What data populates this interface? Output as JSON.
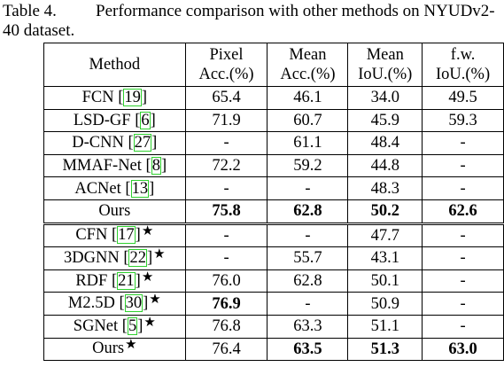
{
  "caption": {
    "label": "Table 4.",
    "text": "Performance comparison with other methods on NYUDv2-40 dataset."
  },
  "headers": [
    {
      "l1": "Method",
      "l2": ""
    },
    {
      "l1": "Pixel",
      "l2": "Acc.(%)"
    },
    {
      "l1": "Mean",
      "l2": "Acc.(%)"
    },
    {
      "l1": "Mean",
      "l2": "IoU.(%)"
    },
    {
      "l1": "f.w.",
      "l2": "IoU.(%)"
    }
  ],
  "rows": [
    {
      "name": "FCN",
      "ref": "19",
      "star": false,
      "vals": [
        "65.4",
        "46.1",
        "34.0",
        "49.5"
      ],
      "bold": [
        false,
        false,
        false,
        false
      ]
    },
    {
      "name": "LSD-GF",
      "ref": "6",
      "star": false,
      "vals": [
        "71.9",
        "60.7",
        "45.9",
        "59.3"
      ],
      "bold": [
        false,
        false,
        false,
        false
      ]
    },
    {
      "name": "D-CNN",
      "ref": "27",
      "star": false,
      "vals": [
        "-",
        "61.1",
        "48.4",
        "-"
      ],
      "bold": [
        false,
        false,
        false,
        false
      ]
    },
    {
      "name": "MMAF-Net",
      "ref": "8",
      "star": false,
      "vals": [
        "72.2",
        "59.2",
        "44.8",
        "-"
      ],
      "bold": [
        false,
        false,
        false,
        false
      ]
    },
    {
      "name": "ACNet",
      "ref": "13",
      "star": false,
      "vals": [
        "-",
        "-",
        "48.3",
        "-"
      ],
      "bold": [
        false,
        false,
        false,
        false
      ]
    },
    {
      "name": "Ours",
      "ref": "",
      "star": false,
      "vals": [
        "75.8",
        "62.8",
        "50.2",
        "62.6"
      ],
      "bold": [
        true,
        true,
        true,
        true
      ]
    },
    {
      "name": "CFN",
      "ref": "17",
      "star": true,
      "vals": [
        "-",
        "-",
        "47.7",
        "-"
      ],
      "bold": [
        false,
        false,
        false,
        false
      ],
      "sep": true
    },
    {
      "name": "3DGNN",
      "ref": "22",
      "star": true,
      "vals": [
        "-",
        "55.7",
        "43.1",
        "-"
      ],
      "bold": [
        false,
        false,
        false,
        false
      ]
    },
    {
      "name": "RDF",
      "ref": "21",
      "star": true,
      "vals": [
        "76.0",
        "62.8",
        "50.1",
        "-"
      ],
      "bold": [
        false,
        false,
        false,
        false
      ]
    },
    {
      "name": "M2.5D",
      "ref": "30",
      "star": true,
      "vals": [
        "76.9",
        "-",
        "50.9",
        "-"
      ],
      "bold": [
        true,
        false,
        false,
        false
      ]
    },
    {
      "name": "SGNet",
      "ref": "5",
      "star": true,
      "vals": [
        "76.8",
        "63.3",
        "51.1",
        "-"
      ],
      "bold": [
        false,
        false,
        false,
        false
      ]
    },
    {
      "name": "Ours",
      "ref": "",
      "star": true,
      "vals": [
        "76.4",
        "63.5",
        "51.3",
        "63.0"
      ],
      "bold": [
        false,
        true,
        true,
        true
      ]
    }
  ]
}
